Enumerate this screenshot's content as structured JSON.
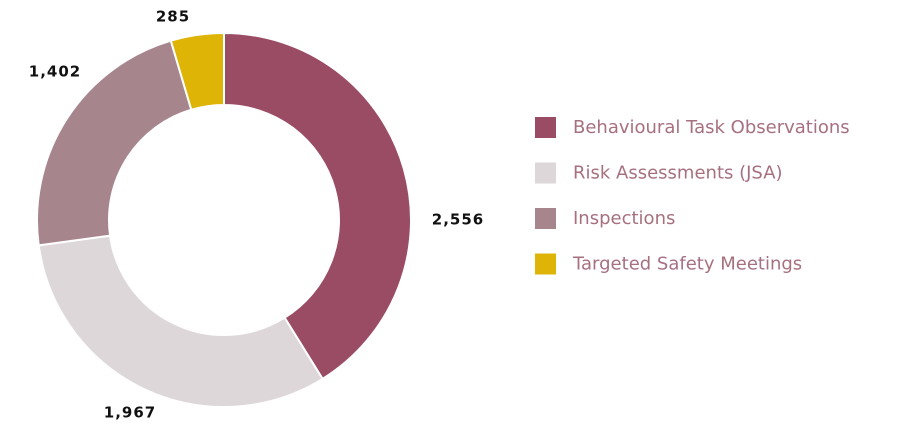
{
  "chart_data": {
    "type": "donut",
    "categories": [
      "Behavioural Task Observations",
      "Risk Assessments (JSA)",
      "Inspections",
      "Targeted Safety Meetings"
    ],
    "values": [
      2556,
      1967,
      1402,
      285
    ],
    "value_labels": [
      "2,556",
      "1,967",
      "1,402",
      "285"
    ],
    "colors": [
      "#9a4c64",
      "#ddd7d9",
      "#a6858d",
      "#deb407"
    ],
    "legend": "right"
  }
}
